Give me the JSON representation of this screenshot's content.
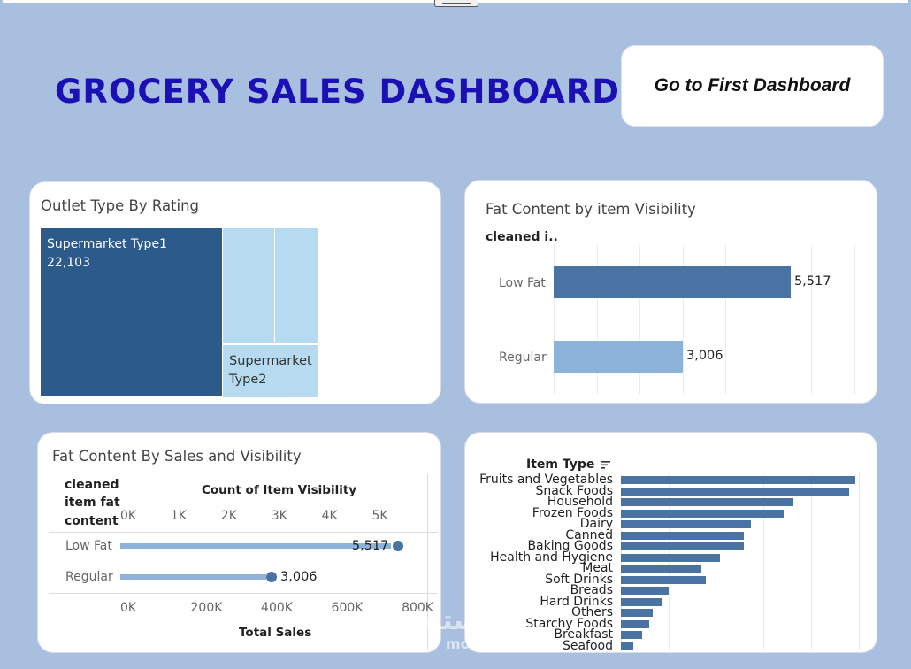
{
  "dashboard": {
    "title": "GROCERY SALES DASHBOARD",
    "nav_button_label": "Go to First Dashboard"
  },
  "colors": {
    "dark_blue": "#2c5a8a",
    "mid_blue": "#4a78a8",
    "light_blue": "#8db3da",
    "pale_blue": "#b6daef",
    "background": "#a9bfe0"
  },
  "outlet_card": {
    "title": "Outlet Type By Rating",
    "cells": [
      {
        "label": "Supermarket Type1",
        "value": "22,103"
      },
      {
        "label": "Supermarket Type2"
      }
    ]
  },
  "visibility_card": {
    "title": "Fat Content by item Visibility",
    "header": "cleaned i..",
    "rows": [
      {
        "label": "Low Fat",
        "value_text": "5,517"
      },
      {
        "label": "Regular",
        "value_text": "3,006"
      }
    ]
  },
  "sales_card": {
    "title": "Fat Content By Sales and Visibility",
    "row_header": [
      "cleaned",
      "item fat",
      "content"
    ],
    "top_axis_title": "Count of Item Visibility",
    "top_ticks": [
      "0K",
      "1K",
      "2K",
      "3K",
      "4K",
      "5K"
    ],
    "bottom_ticks": [
      "0K",
      "200K",
      "400K",
      "600K",
      "800K"
    ],
    "bottom_axis_title": "Total Sales",
    "rows": [
      {
        "label": "Low Fat",
        "value_text": "5,517"
      },
      {
        "label": "Regular",
        "value_text": "3,006"
      }
    ]
  },
  "item_card": {
    "header": "Item Type",
    "sort_icon": "sort-icon"
  },
  "chart_data": [
    {
      "type": "bar",
      "title": "Fat Content by item Visibility",
      "categories": [
        "Low Fat",
        "Regular"
      ],
      "values": [
        5517,
        3006
      ],
      "xlim": [
        0,
        7000
      ]
    },
    {
      "type": "bar",
      "title": "Fat Content By Sales and Visibility",
      "categories": [
        "Low Fat",
        "Regular"
      ],
      "series": [
        {
          "name": "Count of Item Visibility",
          "values": [
            5517,
            3006
          ],
          "xlim": [
            0,
            5800
          ]
        },
        {
          "name": "Total Sales",
          "values": [
            770000,
            415000
          ],
          "xlim": [
            0,
            830000
          ]
        }
      ]
    },
    {
      "type": "bar",
      "title": "Item Type",
      "categories": [
        "Fruits and Vegetables",
        "Snack Foods",
        "Household",
        "Frozen Foods",
        "Dairy",
        "Canned",
        "Baking Goods",
        "Health and Hygiene",
        "Meat",
        "Soft Drinks",
        "Breads",
        "Hard Drinks",
        "Others",
        "Starchy Foods",
        "Breakfast",
        "Seafood"
      ],
      "values": [
        1232,
        1200,
        910,
        856,
        682,
        649,
        648,
        520,
        425,
        445,
        251,
        214,
        169,
        148,
        110,
        64
      ],
      "xlim": [
        0,
        1350
      ]
    }
  ]
}
